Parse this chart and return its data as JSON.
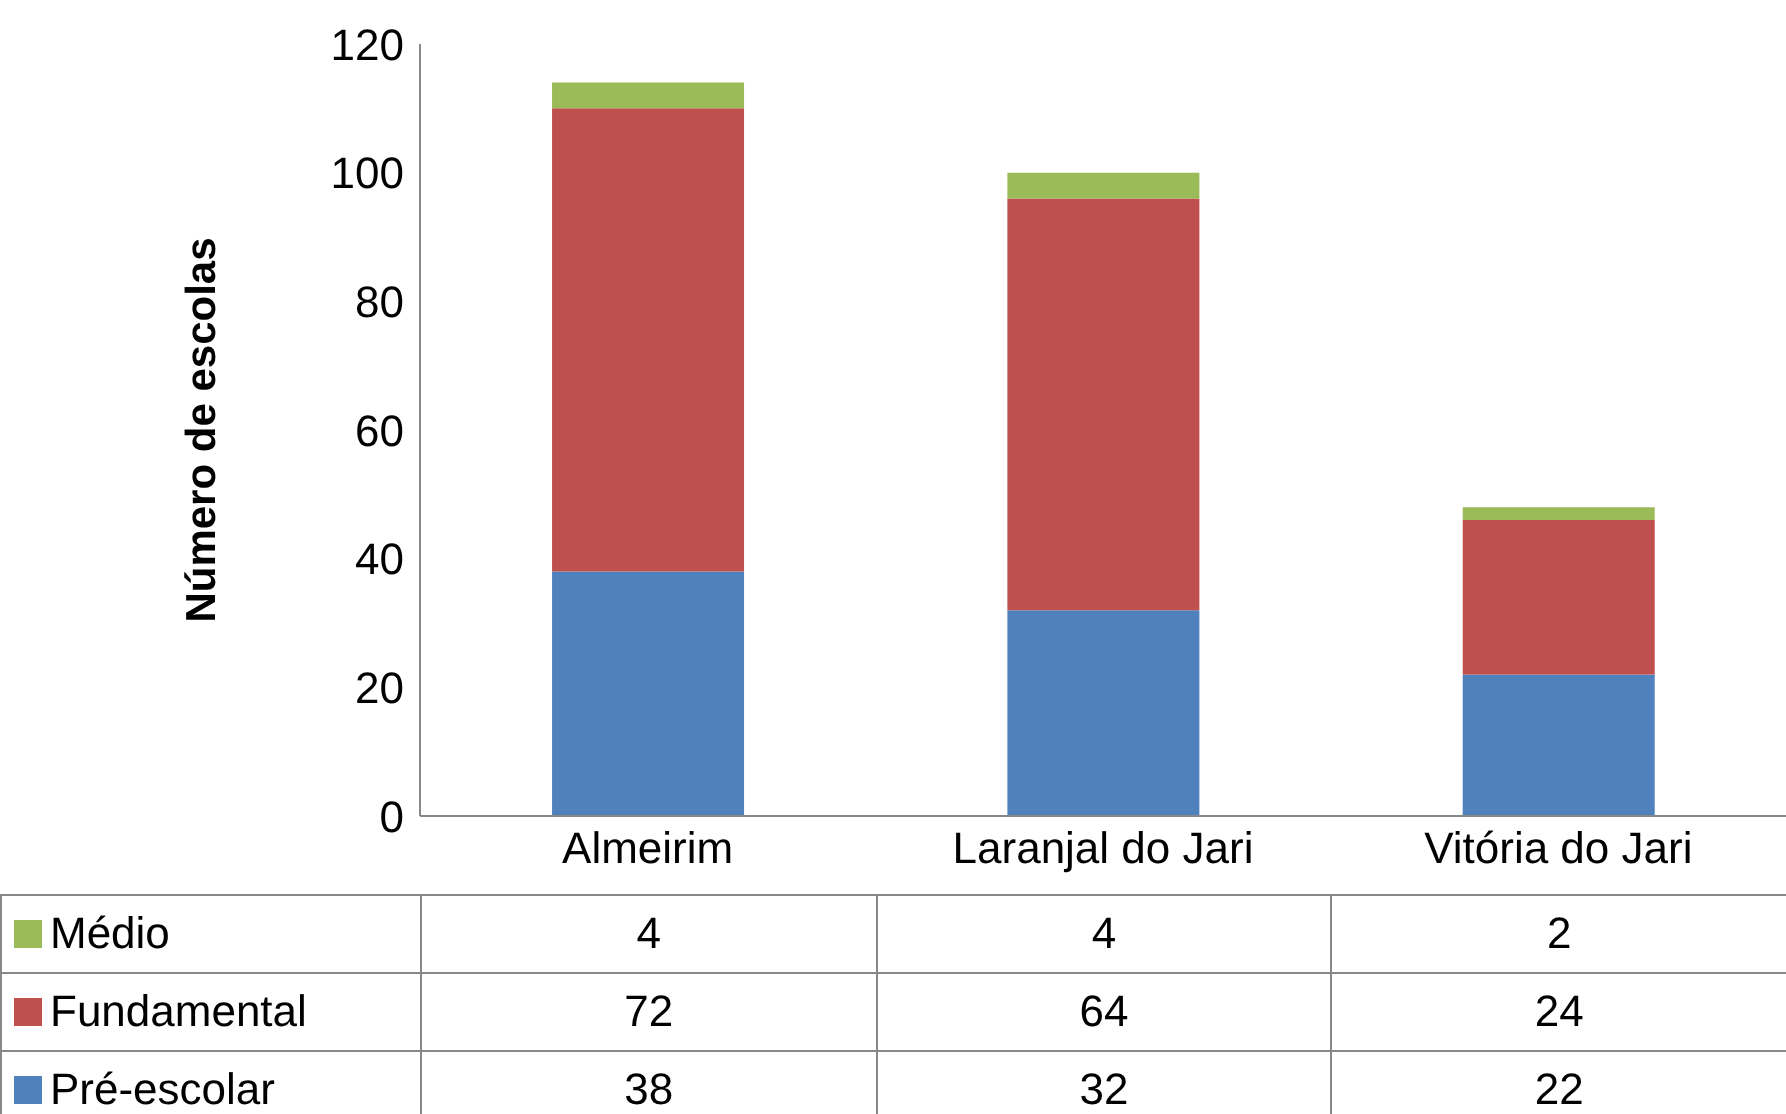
{
  "chart_data": {
    "type": "bar",
    "ylabel": "Número de escolas",
    "categories": [
      "Almeirim",
      "Laranjal do Jari",
      "Vitória do Jari"
    ],
    "series": [
      {
        "name": "Pré-escolar",
        "color": "#4f81bd",
        "values": [
          38,
          32,
          22
        ]
      },
      {
        "name": "Fundamental",
        "color": "#c0504d",
        "values": [
          72,
          64,
          24
        ]
      },
      {
        "name": "Médio",
        "color": "#9bbb59",
        "values": [
          4,
          4,
          2
        ]
      }
    ],
    "stacked": true,
    "ylim": [
      0,
      120
    ],
    "yticks": [
      0,
      20,
      40,
      60,
      80,
      100,
      120
    ],
    "grid": false,
    "data_labels": true,
    "legend": "bottom"
  }
}
